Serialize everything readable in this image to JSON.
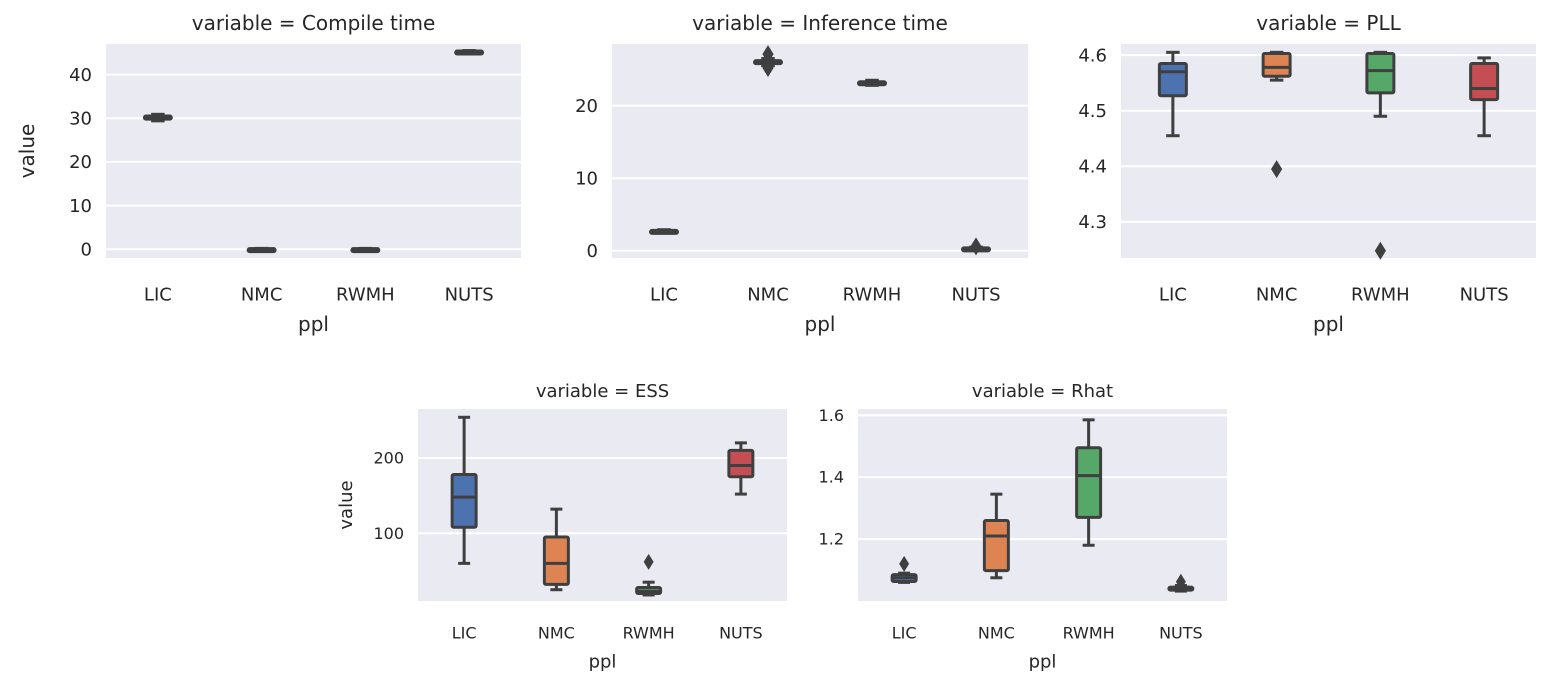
{
  "colors": {
    "LIC": "#4c72b0",
    "NMC": "#dd8452",
    "RWMH": "#55a868",
    "NUTS": "#c44e52"
  },
  "chart_data": [
    {
      "type": "box",
      "title": "variable = Compile time",
      "xlabel": "ppl",
      "ylabel": "value",
      "categories": [
        "LIC",
        "NMC",
        "RWMH",
        "NUTS"
      ],
      "ylim": [
        -2,
        47
      ],
      "yticks": [
        0,
        10,
        20,
        30,
        40
      ],
      "boxes": [
        {
          "category": "LIC",
          "whislo": 29.4,
          "q1": 29.8,
          "med": 30.1,
          "q3": 30.5,
          "whishi": 30.9,
          "fliers": []
        },
        {
          "category": "NMC",
          "whislo": 0.0,
          "q1": 0.05,
          "med": 0.1,
          "q3": 0.15,
          "whishi": 0.2,
          "fliers": []
        },
        {
          "category": "RWMH",
          "whislo": 0.0,
          "q1": 0.05,
          "med": 0.1,
          "q3": 0.15,
          "whishi": 0.2,
          "fliers": []
        },
        {
          "category": "NUTS",
          "whislo": 45.1,
          "q1": 45.2,
          "med": 45.3,
          "q3": 45.4,
          "whishi": 45.5,
          "fliers": []
        }
      ]
    },
    {
      "type": "box",
      "title": "variable = Inference time",
      "xlabel": "ppl",
      "ylabel": "",
      "categories": [
        "LIC",
        "NMC",
        "RWMH",
        "NUTS"
      ],
      "ylim": [
        -1,
        28.5
      ],
      "yticks": [
        0,
        10,
        20
      ],
      "boxes": [
        {
          "category": "LIC",
          "whislo": 2.6,
          "q1": 2.7,
          "med": 2.75,
          "q3": 2.8,
          "whishi": 2.9,
          "fliers": []
        },
        {
          "category": "NMC",
          "whislo": 25.5,
          "q1": 25.8,
          "med": 26.0,
          "q3": 26.2,
          "whishi": 26.5,
          "fliers": [
            25.2,
            27.1
          ]
        },
        {
          "category": "RWMH",
          "whislo": 22.8,
          "q1": 23.0,
          "med": 23.1,
          "q3": 23.3,
          "whishi": 23.5,
          "fliers": []
        },
        {
          "category": "NUTS",
          "whislo": 0.2,
          "q1": 0.3,
          "med": 0.35,
          "q3": 0.4,
          "whishi": 0.5,
          "fliers": [
            0.6
          ]
        }
      ]
    },
    {
      "type": "box",
      "title": "variable = PLL",
      "xlabel": "ppl",
      "ylabel": "",
      "categories": [
        "LIC",
        "NMC",
        "RWMH",
        "NUTS"
      ],
      "ylim": [
        4.235,
        4.62
      ],
      "yticks": [
        4.3,
        4.4,
        4.5,
        4.6
      ],
      "boxes": [
        {
          "category": "LIC",
          "whislo": 4.455,
          "q1": 4.527,
          "med": 4.57,
          "q3": 4.585,
          "whishi": 4.605,
          "fliers": []
        },
        {
          "category": "NMC",
          "whislo": 4.555,
          "q1": 4.562,
          "med": 4.578,
          "q3": 4.603,
          "whishi": 4.605,
          "fliers": [
            4.395
          ]
        },
        {
          "category": "RWMH",
          "whislo": 4.49,
          "q1": 4.532,
          "med": 4.572,
          "q3": 4.603,
          "whishi": 4.605,
          "fliers": [
            4.248
          ]
        },
        {
          "category": "NUTS",
          "whislo": 4.455,
          "q1": 4.52,
          "med": 4.54,
          "q3": 4.585,
          "whishi": 4.595,
          "fliers": []
        }
      ]
    },
    {
      "type": "box",
      "title": "variable = ESS",
      "xlabel": "ppl",
      "ylabel": "value",
      "categories": [
        "LIC",
        "NMC",
        "RWMH",
        "NUTS"
      ],
      "ylim": [
        10,
        265
      ],
      "yticks": [
        100,
        200
      ],
      "boxes": [
        {
          "category": "LIC",
          "whislo": 60,
          "q1": 108,
          "med": 148,
          "q3": 178,
          "whishi": 254,
          "fliers": []
        },
        {
          "category": "NMC",
          "whislo": 25,
          "q1": 32,
          "med": 60,
          "q3": 95,
          "whishi": 132,
          "fliers": []
        },
        {
          "category": "RWMH",
          "whislo": 18,
          "q1": 20,
          "med": 23,
          "q3": 28,
          "whishi": 35,
          "fliers": [
            62
          ]
        },
        {
          "category": "NUTS",
          "whislo": 152,
          "q1": 175,
          "med": 190,
          "q3": 210,
          "whishi": 220,
          "fliers": []
        }
      ]
    },
    {
      "type": "box",
      "title": "variable = Rhat",
      "xlabel": "ppl",
      "ylabel": "",
      "categories": [
        "LIC",
        "NMC",
        "RWMH",
        "NUTS"
      ],
      "ylim": [
        1.0,
        1.62
      ],
      "yticks": [
        1.2,
        1.4,
        1.6
      ],
      "boxes": [
        {
          "category": "LIC",
          "whislo": 1.06,
          "q1": 1.063,
          "med": 1.075,
          "q3": 1.085,
          "whishi": 1.09,
          "fliers": [
            1.12
          ]
        },
        {
          "category": "NMC",
          "whislo": 1.075,
          "q1": 1.098,
          "med": 1.21,
          "q3": 1.26,
          "whishi": 1.345,
          "fliers": []
        },
        {
          "category": "RWMH",
          "whislo": 1.18,
          "q1": 1.27,
          "med": 1.405,
          "q3": 1.495,
          "whishi": 1.585,
          "fliers": []
        },
        {
          "category": "NUTS",
          "whislo": 1.032,
          "q1": 1.035,
          "med": 1.04,
          "q3": 1.045,
          "whishi": 1.05,
          "fliers": [
            1.062
          ]
        }
      ]
    }
  ]
}
